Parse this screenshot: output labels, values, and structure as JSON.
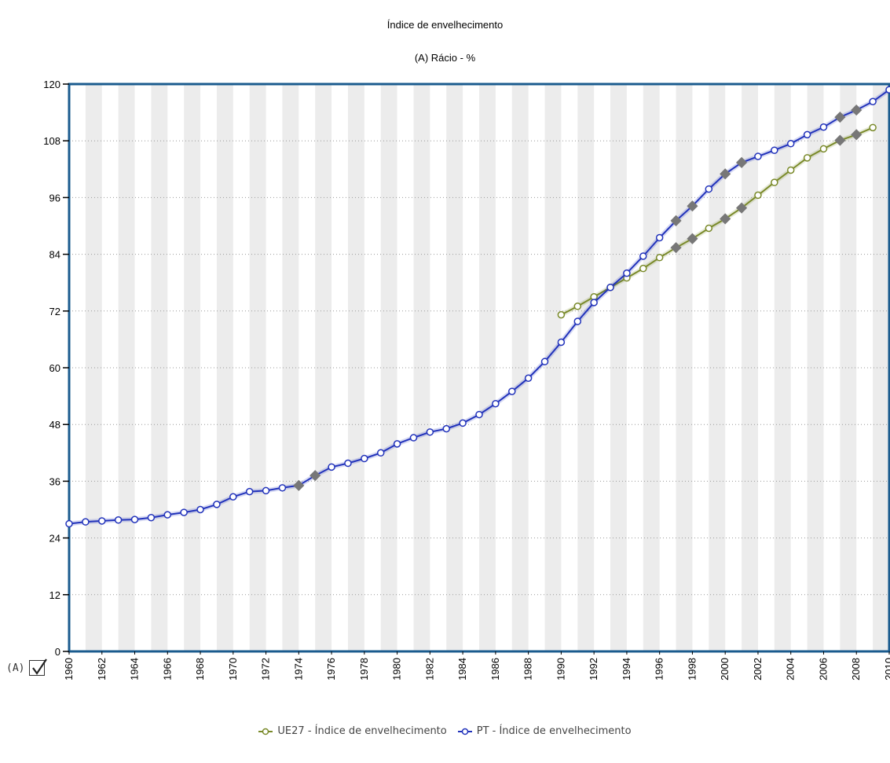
{
  "chart_data": {
    "type": "line",
    "title": "Índice de envelhecimento",
    "subtitle": "(A) Rácio - %",
    "xlabel": "",
    "ylabel": "",
    "ylim": [
      0,
      120
    ],
    "yticks": [
      "0",
      "12",
      "24",
      "36",
      "48",
      "60",
      "72",
      "84",
      "96",
      "108",
      "120"
    ],
    "xticks": [
      "1960",
      "1962",
      "1964",
      "1966",
      "1968",
      "1970",
      "1972",
      "1974",
      "1976",
      "1978",
      "1980",
      "1982",
      "1984",
      "1986",
      "1988",
      "1990",
      "1992",
      "1994",
      "1996",
      "1998",
      "2000",
      "2002",
      "2004",
      "2006",
      "2008",
      "2010"
    ],
    "grid": "horizontal dotted",
    "legend_position": "bottom",
    "series": [
      {
        "name": "UE27 - Índice de envelhecimento",
        "color": "#7a8a2a",
        "x": [
          1990,
          1991,
          1992,
          1993,
          1994,
          1995,
          1996,
          1997,
          1998,
          1999,
          2000,
          2001,
          2002,
          2003,
          2004,
          2005,
          2006,
          2007,
          2008,
          2009
        ],
        "values": [
          71.2,
          73.0,
          75.0,
          77.0,
          79.0,
          81.0,
          83.3,
          85.4,
          87.3,
          89.5,
          91.5,
          93.8,
          96.5,
          99.2,
          101.8,
          104.4,
          106.3,
          108.1,
          109.3,
          110.8
        ]
      },
      {
        "name": "PT - Índice de envelhecimento",
        "color": "#2233bb",
        "x": [
          1960,
          1961,
          1962,
          1963,
          1964,
          1965,
          1966,
          1967,
          1968,
          1969,
          1970,
          1971,
          1972,
          1973,
          1974,
          1975,
          1976,
          1977,
          1978,
          1979,
          1980,
          1981,
          1982,
          1983,
          1984,
          1985,
          1986,
          1987,
          1988,
          1989,
          1990,
          1991,
          1992,
          1993,
          1994,
          1995,
          1996,
          1997,
          1998,
          1999,
          2000,
          2001,
          2002,
          2003,
          2004,
          2005,
          2006,
          2007,
          2008,
          2009,
          2010
        ],
        "values": [
          27.0,
          27.4,
          27.6,
          27.8,
          27.9,
          28.3,
          28.9,
          29.4,
          30.0,
          31.1,
          32.7,
          33.8,
          34.0,
          34.6,
          35.1,
          37.2,
          39.0,
          39.8,
          40.8,
          42.0,
          43.9,
          45.2,
          46.4,
          47.1,
          48.3,
          50.1,
          52.4,
          55.0,
          57.8,
          61.3,
          65.4,
          69.8,
          73.8,
          77.0,
          80.0,
          83.6,
          87.5,
          91.1,
          94.2,
          97.8,
          101.0,
          103.4,
          104.7,
          106.0,
          107.4,
          109.3,
          110.9,
          113.0,
          114.5,
          116.3,
          118.8
        ]
      }
    ],
    "estimated_points": {
      "UE27": [
        1997,
        1998,
        2000,
        2001,
        2007,
        2008
      ],
      "PT": [
        1974,
        1975,
        1997,
        1998,
        2000,
        2001,
        2007,
        2008
      ]
    }
  },
  "axis_flag": {
    "label": "(A)",
    "checked": true
  },
  "legend": [
    {
      "label": "UE27 - Índice de envelhecimento",
      "color": "#7a8a2a"
    },
    {
      "label": "PT - Índice de envelhecimento",
      "color": "#2233bb"
    }
  ]
}
